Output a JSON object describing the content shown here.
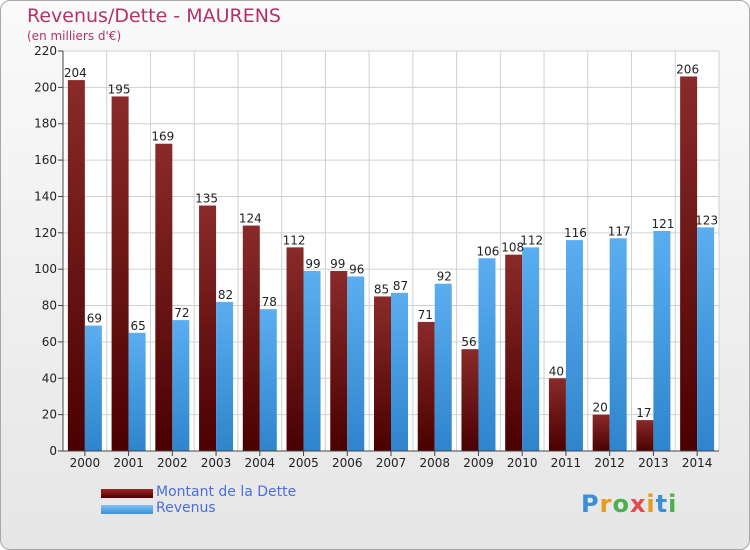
{
  "chart_data": {
    "type": "bar",
    "title": "Revenus/Dette - MAURENS",
    "subtitle": "(en milliers d'€)",
    "categories": [
      "2000",
      "2001",
      "2002",
      "2003",
      "2004",
      "2005",
      "2006",
      "2007",
      "2008",
      "2009",
      "2010",
      "2011",
      "2012",
      "2013",
      "2014"
    ],
    "series": [
      {
        "name": "Montant de la Dette",
        "color": "#7a1f1f",
        "values": [
          204,
          195,
          169,
          135,
          124,
          112,
          99,
          85,
          71,
          56,
          108,
          40,
          20,
          17,
          206
        ]
      },
      {
        "name": "Revenus",
        "color": "#4da3e8",
        "values": [
          69,
          65,
          72,
          82,
          78,
          99,
          96,
          87,
          92,
          106,
          112,
          116,
          117,
          121,
          123
        ]
      }
    ],
    "ylim": [
      0,
      220
    ],
    "yticks": [
      0,
      20,
      40,
      60,
      80,
      100,
      120,
      140,
      160,
      180,
      200,
      220
    ],
    "grid": true,
    "legend_position": "bottom-left"
  },
  "logo": {
    "letters": [
      "P",
      "r",
      "o",
      "x",
      "i",
      "t",
      "i"
    ],
    "colors": [
      "#3a8fd6",
      "#e89a1c",
      "#4caf50",
      "#e34a4a",
      "#e89a1c",
      "#3a8fd6",
      "#4caf50"
    ]
  }
}
